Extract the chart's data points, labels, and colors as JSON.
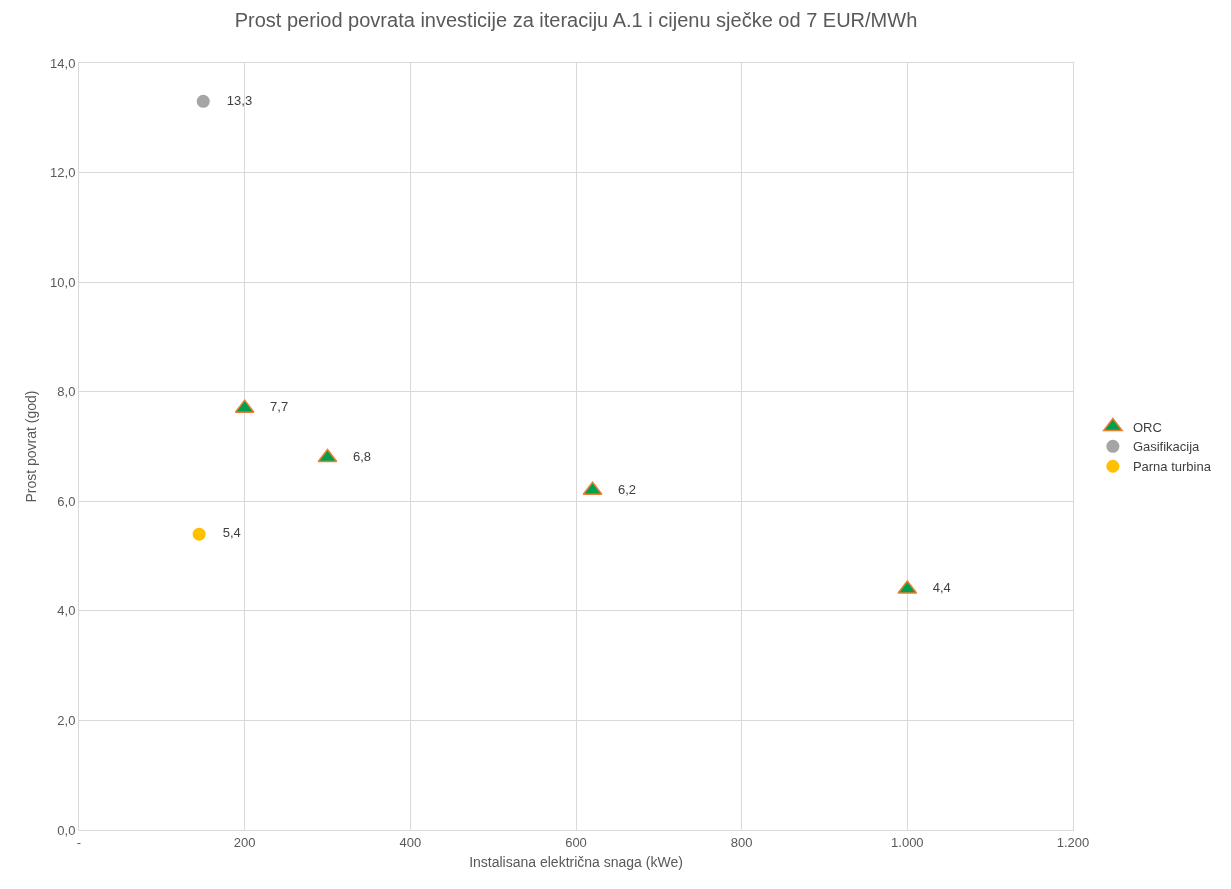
{
  "chart_data": {
    "type": "scatter",
    "title": "Prost period povrata investicije za iteraciju A.1 i cijenu sječke od 7 EUR/MWh",
    "xlabel": "Instalisana električna snaga (kWe)",
    "ylabel": "Prost povrat (god)",
    "series": [
      {
        "name": "ORC",
        "color": "#00a050",
        "marker": "triangle",
        "x": [
          200,
          300,
          620,
          1000
        ],
        "values": [
          7.7,
          6.8,
          6.2,
          4.4
        ],
        "value_labels": [
          "7,7",
          "6,8",
          "6,2",
          "4,4"
        ]
      },
      {
        "name": "Gasifikacija",
        "color": "#a5a5a5",
        "marker": "circle",
        "x": [
          150
        ],
        "values": [
          13.3
        ],
        "value_labels": [
          "13,3"
        ]
      },
      {
        "name": "Parna turbina",
        "color": "#ffc000",
        "marker": "circle",
        "x": [
          145
        ],
        "values": [
          5.4
        ],
        "value_labels": [
          "5,4"
        ]
      }
    ],
    "xlim": [
      0,
      1200
    ],
    "xticks": [
      {
        "value": 0,
        "label": "-"
      },
      200,
      400,
      600,
      800,
      {
        "value": 1000,
        "label": "1.000"
      },
      {
        "value": 1200,
        "label": "1.200"
      }
    ],
    "ylim": [
      0,
      14
    ],
    "yticks": [
      {
        "value": 0,
        "label": "0,0"
      },
      {
        "value": 2,
        "label": "2,0"
      },
      {
        "value": 4,
        "label": "4,0"
      },
      {
        "value": 6,
        "label": "6,0"
      },
      {
        "value": 8,
        "label": "8,0"
      },
      {
        "value": 10,
        "label": "10,0"
      },
      {
        "value": 12,
        "label": "12,0"
      },
      {
        "value": 14,
        "label": "14,0"
      }
    ],
    "grid": true,
    "legend": "right"
  }
}
